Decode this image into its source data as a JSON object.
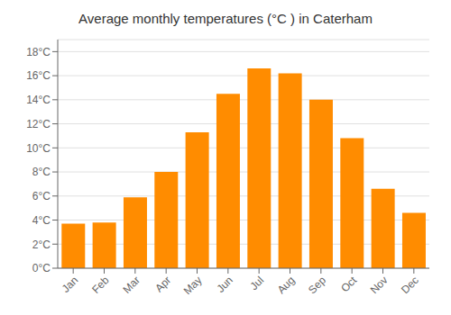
{
  "chart_data": {
    "type": "bar",
    "title": "Average monthly temperatures (°C ) in Caterham",
    "categories": [
      "Jan",
      "Feb",
      "Mar",
      "Apr",
      "May",
      "Jun",
      "Jul",
      "Aug",
      "Sep",
      "Oct",
      "Nov",
      "Dec"
    ],
    "values": [
      3.7,
      3.8,
      5.9,
      8.0,
      11.3,
      14.5,
      16.6,
      16.2,
      14.0,
      10.8,
      6.6,
      4.6
    ],
    "color": "#FF8C00",
    "ylim": [
      0,
      19.0
    ],
    "yticks": [
      {
        "value": 0,
        "label": "0°C"
      },
      {
        "value": 2,
        "label": "2°C"
      },
      {
        "value": 4,
        "label": "4°C"
      },
      {
        "value": 6,
        "label": "6°C"
      },
      {
        "value": 8,
        "label": "8°C"
      },
      {
        "value": 10,
        "label": "10°C"
      },
      {
        "value": 12,
        "label": "12°C"
      },
      {
        "value": 14,
        "label": "14°C"
      },
      {
        "value": 16,
        "label": "16°C"
      },
      {
        "value": 18,
        "label": "18°C"
      }
    ],
    "grid": true
  }
}
